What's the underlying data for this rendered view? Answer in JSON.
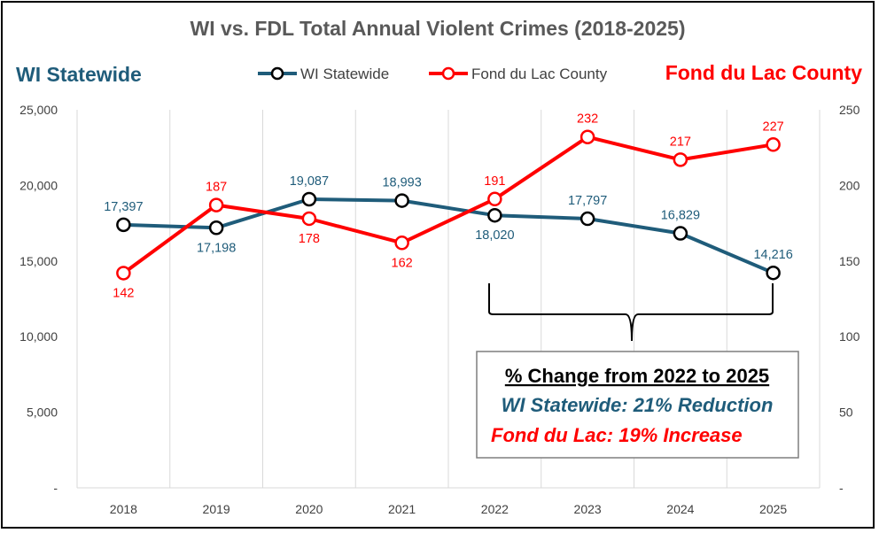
{
  "chart_data": {
    "type": "line",
    "title": "WI vs. FDL Total Annual Violent Crimes (2018-2025)",
    "left_axis_title": "WI Statewide",
    "right_axis_title": "Fond du Lac County",
    "categories": [
      "2018",
      "2019",
      "2020",
      "2021",
      "2022",
      "2023",
      "2024",
      "2025"
    ],
    "y_left": {
      "ylim": [
        0,
        25000
      ],
      "ticks": [
        "-",
        "5,000",
        "10,000",
        "15,000",
        "20,000",
        "25,000"
      ]
    },
    "y_right": {
      "ylim": [
        0,
        250
      ],
      "ticks": [
        "-",
        "50",
        "100",
        "150",
        "200",
        "250"
      ]
    },
    "grid": "vertical",
    "legend_position": "top",
    "series": [
      {
        "name": "WI Statewide",
        "axis": "left",
        "color": "#1F5C7A",
        "values": [
          17397,
          17198,
          19087,
          18993,
          18020,
          17797,
          16829,
          14216
        ],
        "labels": [
          "17,397",
          "17,198",
          "19,087",
          "18,993",
          "18,020",
          "17,797",
          "16,829",
          "14,216"
        ]
      },
      {
        "name": "Fond du Lac County",
        "axis": "right",
        "color": "#FF0000",
        "values": [
          142,
          187,
          178,
          162,
          191,
          232,
          217,
          227
        ],
        "labels": [
          "142",
          "187",
          "178",
          "162",
          "191",
          "232",
          "217",
          "227"
        ]
      }
    ],
    "annotation": {
      "heading": "% Change from 2022 to 2025",
      "line1": "WI Statewide: 21% Reduction",
      "line2": "Fond du Lac: 19% Increase",
      "line1_color": "#1F5C7A",
      "line2_color": "#FF0000",
      "bracket_range": [
        "2022",
        "2025"
      ]
    }
  }
}
